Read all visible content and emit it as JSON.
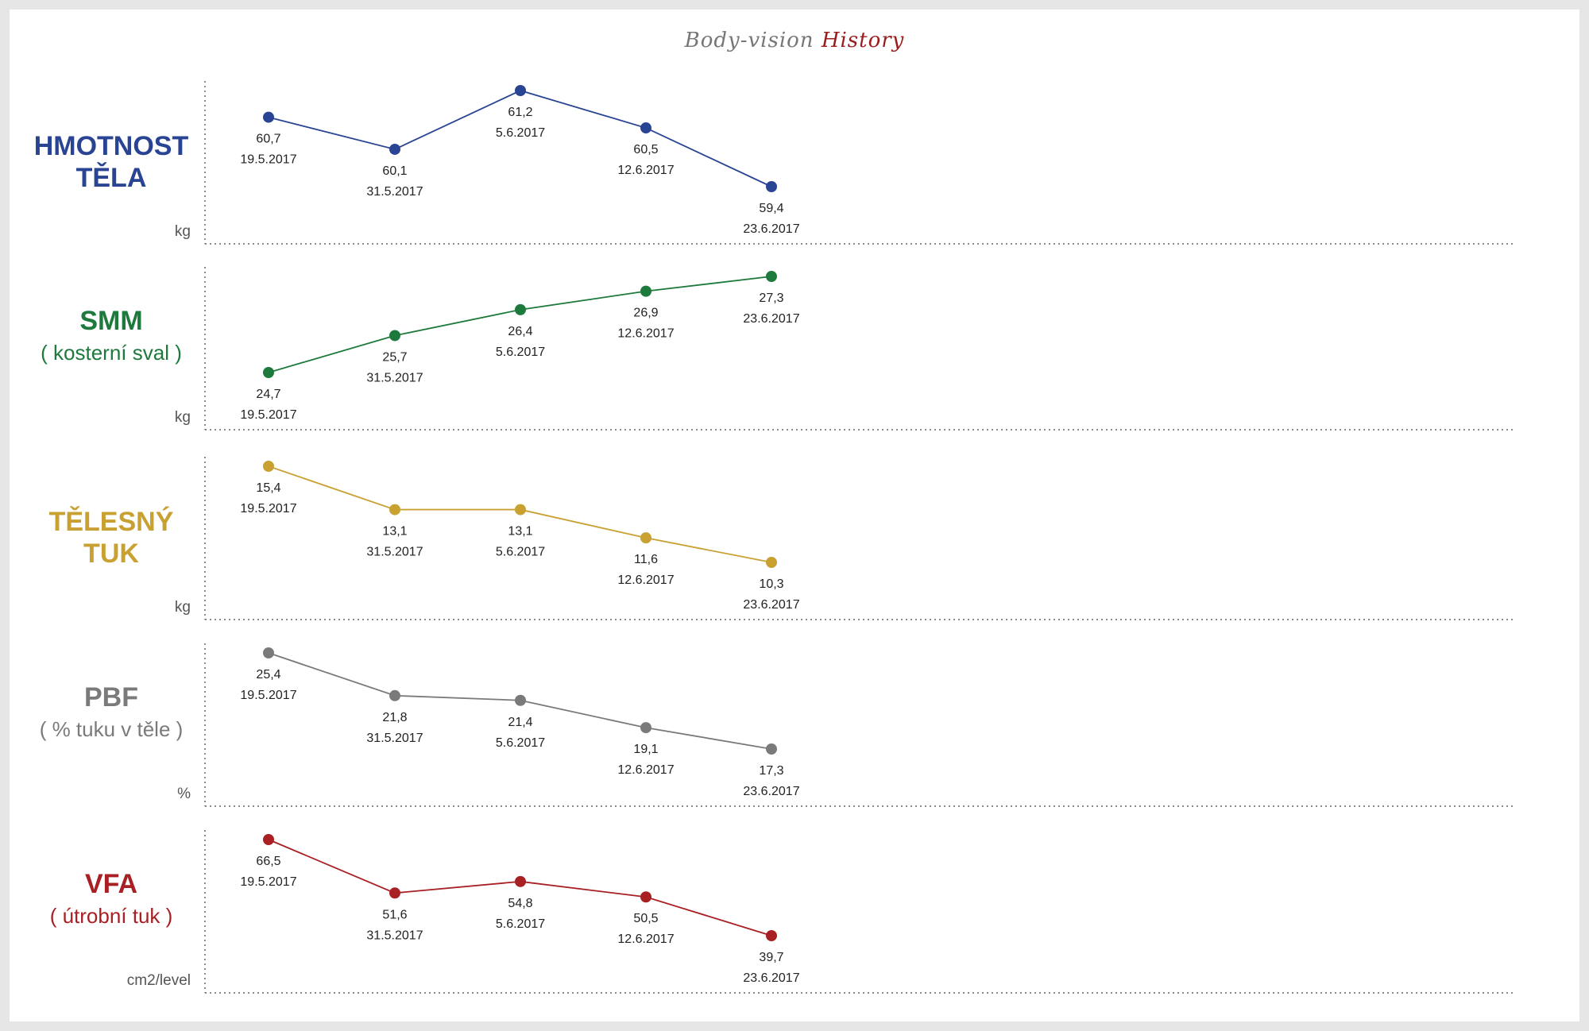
{
  "title": {
    "part1": "Body-vision",
    "part2": "History"
  },
  "dates": [
    "19.5.2017",
    "31.5.2017",
    "5.6.2017",
    "12.6.2017",
    "23.6.2017"
  ],
  "chart_data": [
    {
      "type": "line",
      "label_line1": "HMOTNOST",
      "label_line2": "TĚLA",
      "sublabel": "",
      "unit": "kg",
      "color": "#2a4494",
      "x": [
        "19.5.2017",
        "31.5.2017",
        "5.6.2017",
        "12.6.2017",
        "23.6.2017"
      ],
      "values": [
        60.7,
        60.1,
        61.2,
        60.5,
        59.4
      ],
      "value_labels": [
        "60,7",
        "60,1",
        "61,2",
        "60,5",
        "59,4"
      ]
    },
    {
      "type": "line",
      "label_line1": "SMM",
      "label_line2": "",
      "sublabel": "( kosterní sval )",
      "unit": "kg",
      "color": "#1e7a3c",
      "x": [
        "19.5.2017",
        "31.5.2017",
        "5.6.2017",
        "12.6.2017",
        "23.6.2017"
      ],
      "values": [
        24.7,
        25.7,
        26.4,
        26.9,
        27.3
      ],
      "value_labels": [
        "24,7",
        "25,7",
        "26,4",
        "26,9",
        "27,3"
      ]
    },
    {
      "type": "line",
      "label_line1": "TĚLESNÝ",
      "label_line2": "TUK",
      "sublabel": "",
      "unit": "kg",
      "color": "#c9a032",
      "x": [
        "19.5.2017",
        "31.5.2017",
        "5.6.2017",
        "12.6.2017",
        "23.6.2017"
      ],
      "values": [
        15.4,
        13.1,
        13.1,
        11.6,
        10.3
      ],
      "value_labels": [
        "15,4",
        "13,1",
        "13,1",
        "11,6",
        "10,3"
      ]
    },
    {
      "type": "line",
      "label_line1": "PBF",
      "label_line2": "",
      "sublabel": "( % tuku v těle )",
      "unit": "%",
      "color": "#7a7a7a",
      "x": [
        "19.5.2017",
        "31.5.2017",
        "5.6.2017",
        "12.6.2017",
        "23.6.2017"
      ],
      "values": [
        25.4,
        21.8,
        21.4,
        19.1,
        17.3
      ],
      "value_labels": [
        "25,4",
        "21,8",
        "21,4",
        "19,1",
        "17,3"
      ]
    },
    {
      "type": "line",
      "label_line1": "VFA",
      "label_line2": "",
      "sublabel": "( útrobní tuk )",
      "unit": "cm2/level",
      "color": "#a81f24",
      "x": [
        "19.5.2017",
        "31.5.2017",
        "5.6.2017",
        "12.6.2017",
        "23.6.2017"
      ],
      "values": [
        66.5,
        51.6,
        54.8,
        50.5,
        39.7
      ],
      "value_labels": [
        "66,5",
        "51,6",
        "54,8",
        "50,5",
        "39,7"
      ]
    }
  ]
}
